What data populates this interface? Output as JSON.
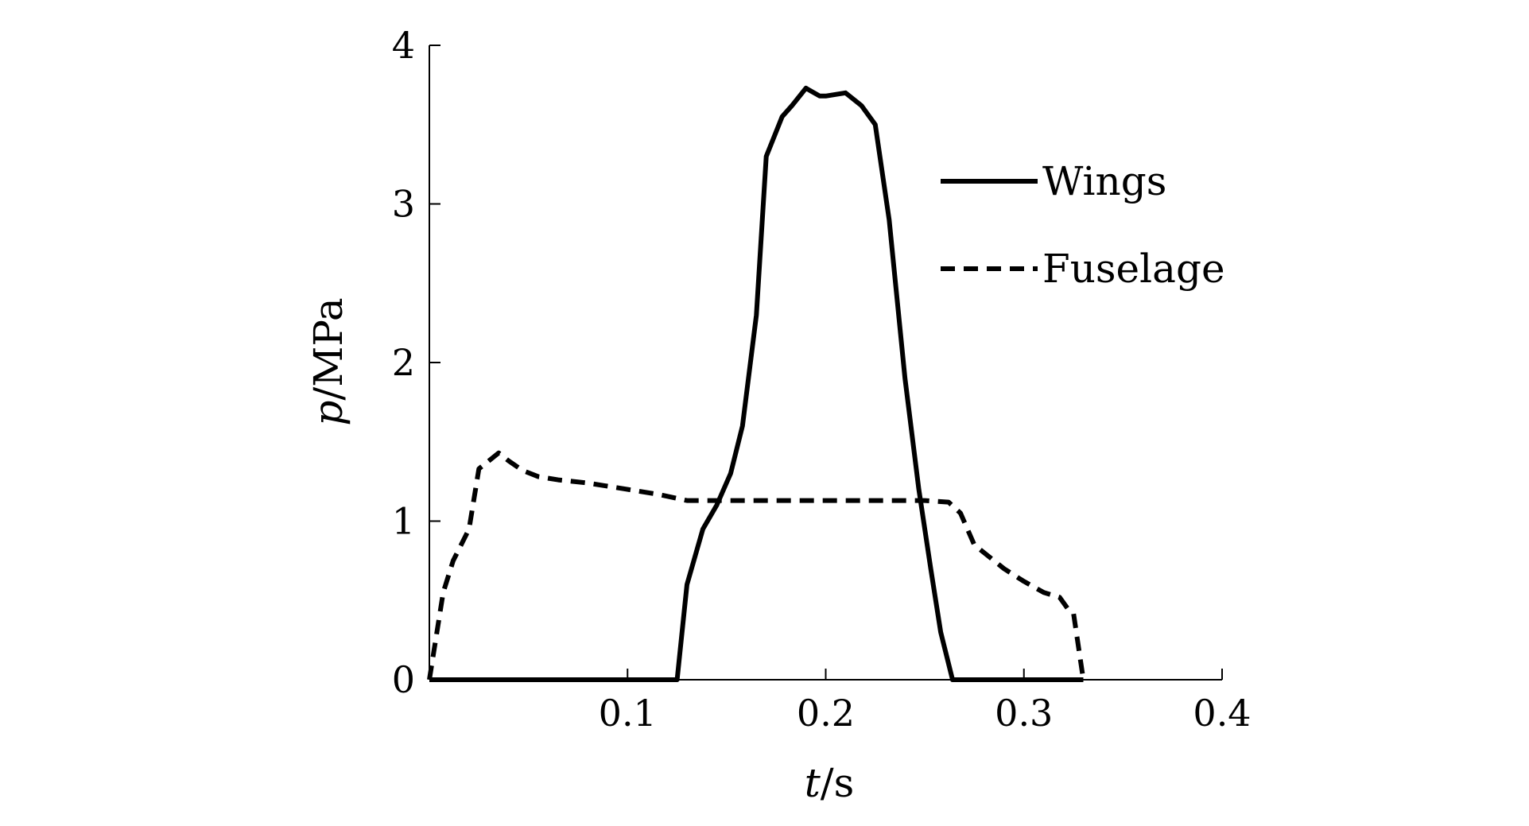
{
  "chart_data": {
    "type": "line",
    "title": "",
    "xlabel": {
      "var": "t",
      "unit": "/s"
    },
    "ylabel": {
      "var": "p",
      "unit": "/MPa"
    },
    "xlim": [
      0,
      0.4
    ],
    "ylim": [
      0,
      4
    ],
    "xticks": [
      0.1,
      0.2,
      0.3,
      0.4
    ],
    "xtick_labels": [
      "0.1",
      "0.2",
      "0.3",
      "0.4"
    ],
    "yticks": [
      0,
      1,
      2,
      3,
      4
    ],
    "ytick_labels": [
      "0",
      "1",
      "2",
      "3",
      "4"
    ],
    "grid": false,
    "legend_position": "top-right",
    "series": [
      {
        "name": "Wings",
        "style": "solid",
        "color": "#000000",
        "x": [
          0,
          0.125,
          0.13,
          0.138,
          0.145,
          0.152,
          0.158,
          0.165,
          0.17,
          0.178,
          0.183,
          0.19,
          0.197,
          0.2,
          0.21,
          0.218,
          0.225,
          0.232,
          0.24,
          0.247,
          0.253,
          0.258,
          0.264,
          0.27,
          0.28,
          0.33
        ],
        "y": [
          0,
          0,
          0.6,
          0.95,
          1.1,
          1.3,
          1.6,
          2.3,
          3.3,
          3.55,
          3.62,
          3.73,
          3.68,
          3.68,
          3.7,
          3.62,
          3.5,
          2.9,
          1.9,
          1.2,
          0.7,
          0.3,
          0,
          0,
          0,
          0
        ]
      },
      {
        "name": "Fuselage",
        "style": "dashed",
        "color": "#000000",
        "x": [
          0,
          0.007,
          0.012,
          0.02,
          0.025,
          0.03,
          0.035,
          0.04,
          0.047,
          0.055,
          0.065,
          0.08,
          0.1,
          0.115,
          0.13,
          0.15,
          0.2,
          0.25,
          0.262,
          0.268,
          0.275,
          0.29,
          0.3,
          0.31,
          0.318,
          0.322,
          0.325,
          0.33
        ],
        "y": [
          0,
          0.55,
          0.75,
          0.95,
          1.33,
          1.38,
          1.43,
          1.38,
          1.32,
          1.28,
          1.26,
          1.24,
          1.2,
          1.17,
          1.13,
          1.13,
          1.13,
          1.13,
          1.12,
          1.05,
          0.85,
          0.7,
          0.62,
          0.55,
          0.52,
          0.45,
          0.42,
          0
        ]
      }
    ]
  }
}
